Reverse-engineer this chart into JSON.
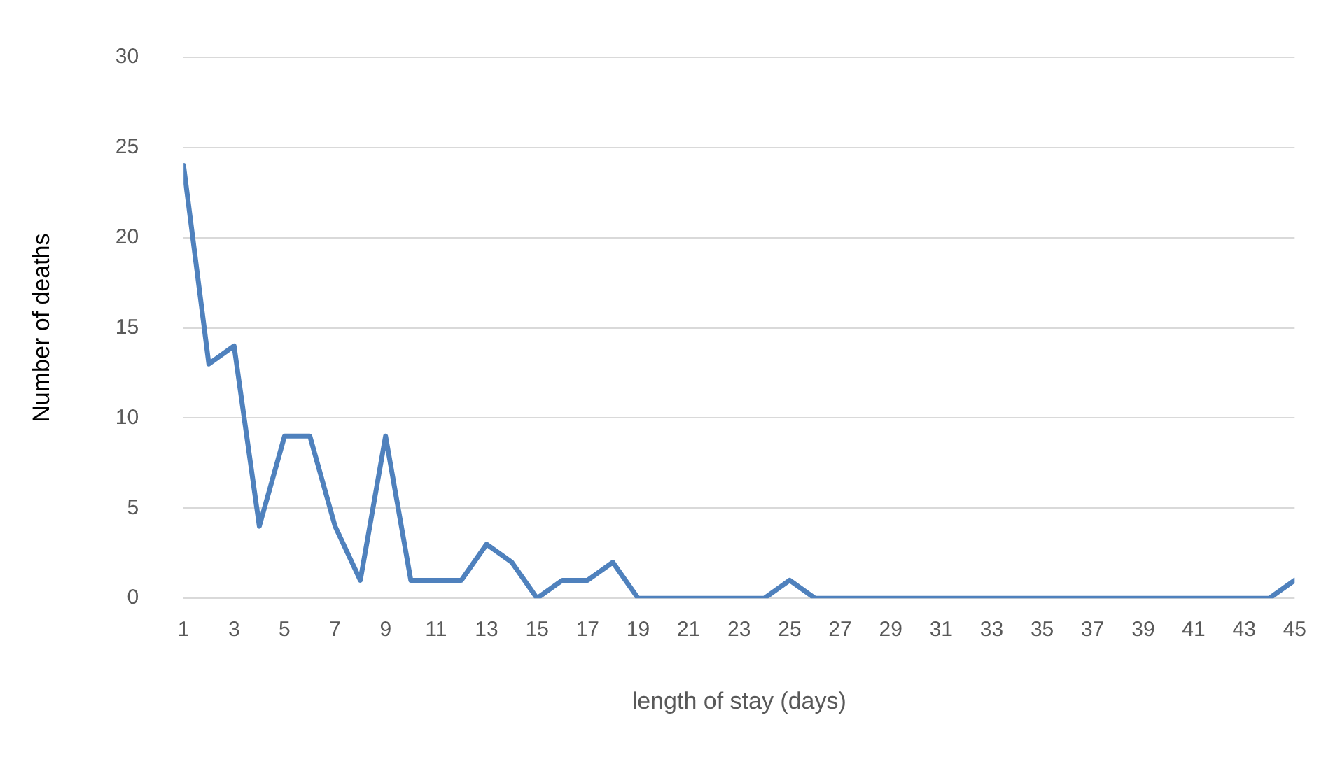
{
  "chart_data": {
    "type": "line",
    "xlabel": "length of stay (days)",
    "ylabel": "Number of deaths",
    "x": [
      1,
      2,
      3,
      4,
      5,
      6,
      7,
      8,
      9,
      10,
      11,
      12,
      13,
      14,
      15,
      16,
      17,
      18,
      19,
      20,
      21,
      22,
      23,
      24,
      25,
      26,
      27,
      28,
      29,
      30,
      31,
      32,
      33,
      34,
      35,
      36,
      37,
      38,
      39,
      40,
      41,
      42,
      43,
      44,
      45
    ],
    "series": [
      {
        "color": "#4f81bd",
        "values": [
          24,
          13,
          14,
          4,
          9,
          9,
          4,
          1,
          9,
          1,
          1,
          1,
          3,
          2,
          0,
          1,
          1,
          2,
          0,
          0,
          0,
          0,
          0,
          0,
          1,
          0,
          0,
          0,
          0,
          0,
          0,
          0,
          0,
          0,
          0,
          0,
          0,
          0,
          0,
          0,
          0,
          0,
          0,
          0,
          1
        ]
      }
    ],
    "xlim": [
      1,
      45
    ],
    "xticks": [
      1,
      3,
      5,
      7,
      9,
      11,
      13,
      15,
      17,
      19,
      21,
      23,
      25,
      27,
      29,
      31,
      33,
      35,
      37,
      39,
      41,
      43,
      45
    ],
    "ylim": [
      0,
      30
    ],
    "yticks": [
      0,
      5,
      10,
      15,
      20,
      25,
      30
    ],
    "grid": "y",
    "legend": false,
    "marker": "none",
    "line_style": "solid"
  }
}
